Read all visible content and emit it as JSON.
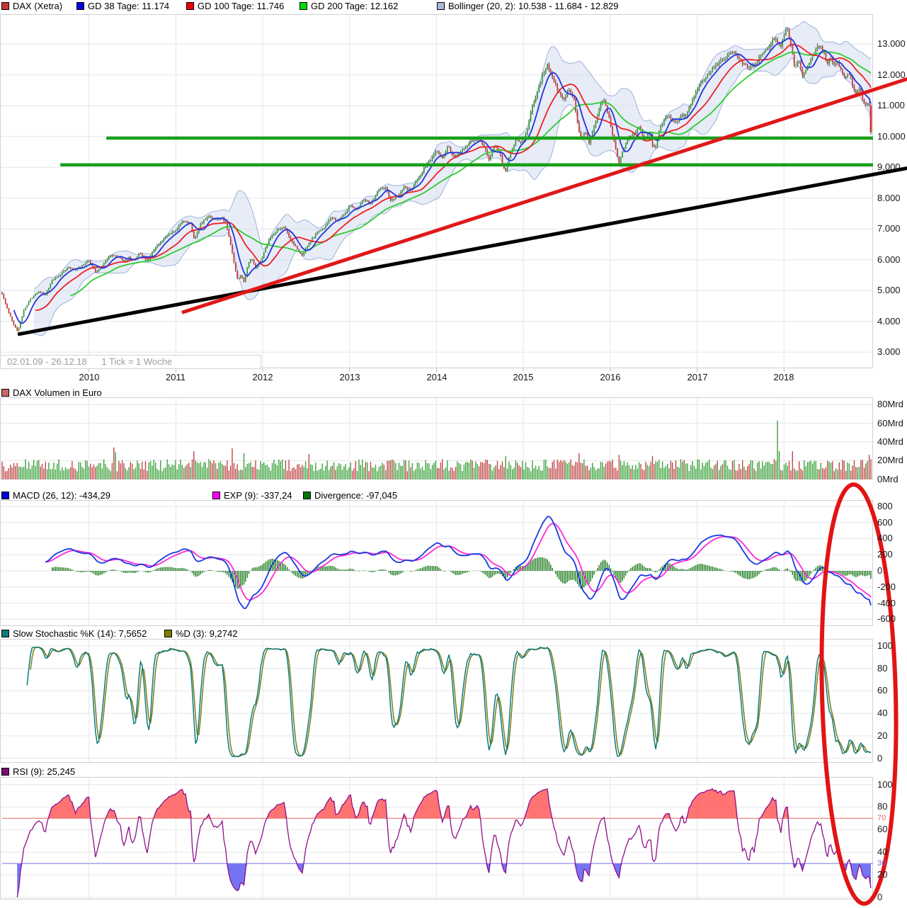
{
  "window": {
    "background": "#ffffff"
  },
  "annotation": {
    "shape": "ellipse",
    "color": "#e21414"
  },
  "chart_data": [
    {
      "id": "price",
      "type": "candlestick",
      "title": "DAX (Xetra)",
      "date_range": "02.01.09 - 26.12.18",
      "timeframe": "1 Tick = 1 Woche",
      "legend": [
        {
          "label": "DAX (Xetra)",
          "color": "#cc3333"
        },
        {
          "label": "GD 38 Tage: 11.174",
          "color": "#0000dd"
        },
        {
          "label": "GD 100 Tage: 11.746",
          "color": "#ee0000"
        },
        {
          "label": "GD 200 Tage: 12.162",
          "color": "#00dd00"
        },
        {
          "label": "Bollinger (20, 2): 10.538 - 11.684 - 12.829",
          "color": "#aab8dc"
        }
      ],
      "x_labels": [
        "2010",
        "2011",
        "2012",
        "2013",
        "2014",
        "2015",
        "2016",
        "2017",
        "2018"
      ],
      "y_ticks": [
        {
          "v": 13000,
          "label": "13.000"
        },
        {
          "v": 12000,
          "label": "12.000"
        },
        {
          "v": 11000,
          "label": "11.000"
        },
        {
          "v": 10000,
          "label": "10.000"
        },
        {
          "v": 9000,
          "label": "9.000"
        },
        {
          "v": 8000,
          "label": "8.000"
        },
        {
          "v": 7000,
          "label": "7.000"
        },
        {
          "v": 6000,
          "label": "6.000"
        },
        {
          "v": 5000,
          "label": "5.000"
        },
        {
          "v": 4000,
          "label": "4.000"
        },
        {
          "v": 3000,
          "label": "3.000"
        }
      ],
      "ylim": [
        2480,
        13980
      ],
      "indicators": {
        "gd38": "11.174",
        "gd100": "11.746",
        "gd200": "12.162",
        "bollinger_20_2": "10.538 - 11.684 - 12.829"
      },
      "support_levels": [
        {
          "price": 9950,
          "start_year": 2010.2,
          "color": "#18a018"
        },
        {
          "price": 9080,
          "start_year": 2009.67,
          "color": "#18a018"
        }
      ],
      "trendlines": [
        {
          "color": "#000000",
          "x1_year": 2009.18,
          "price1": 3580,
          "x2_year": 2019.45,
          "price2": 8990
        },
        {
          "color": "#e01818",
          "x1_year": 2011.07,
          "price1": 4290,
          "x2_year": 2019.45,
          "price2": 11900
        }
      ],
      "weekly_close_anchors": [
        [
          2009.0,
          4900
        ],
        [
          2009.05,
          4450
        ],
        [
          2009.13,
          3900
        ],
        [
          2009.18,
          3680
        ],
        [
          2009.25,
          4350
        ],
        [
          2009.33,
          4720
        ],
        [
          2009.42,
          4950
        ],
        [
          2009.5,
          4850
        ],
        [
          2009.58,
          5350
        ],
        [
          2009.67,
          5480
        ],
        [
          2009.75,
          5750
        ],
        [
          2009.83,
          5650
        ],
        [
          2009.92,
          5800
        ],
        [
          2010.0,
          5950
        ],
        [
          2010.08,
          5580
        ],
        [
          2010.17,
          5900
        ],
        [
          2010.25,
          6150
        ],
        [
          2010.33,
          6100
        ],
        [
          2010.4,
          5950
        ],
        [
          2010.46,
          6050
        ],
        [
          2010.52,
          5980
        ],
        [
          2010.58,
          6250
        ],
        [
          2010.67,
          5980
        ],
        [
          2010.75,
          6300
        ],
        [
          2010.83,
          6600
        ],
        [
          2010.92,
          6850
        ],
        [
          2011.0,
          6950
        ],
        [
          2011.08,
          7250
        ],
        [
          2011.17,
          7150
        ],
        [
          2011.21,
          6680
        ],
        [
          2011.29,
          7180
        ],
        [
          2011.37,
          7420
        ],
        [
          2011.45,
          7280
        ],
        [
          2011.54,
          7350
        ],
        [
          2011.58,
          7150
        ],
        [
          2011.63,
          6450
        ],
        [
          2011.67,
          5850
        ],
        [
          2011.71,
          5380
        ],
        [
          2011.75,
          5520
        ],
        [
          2011.79,
          5270
        ],
        [
          2011.83,
          5870
        ],
        [
          2011.87,
          6080
        ],
        [
          2011.92,
          5720
        ],
        [
          2011.96,
          5900
        ],
        [
          2012.0,
          6120
        ],
        [
          2012.08,
          6720
        ],
        [
          2012.17,
          6960
        ],
        [
          2012.25,
          7060
        ],
        [
          2012.33,
          6620
        ],
        [
          2012.42,
          6280
        ],
        [
          2012.46,
          6120
        ],
        [
          2012.54,
          6570
        ],
        [
          2012.63,
          6920
        ],
        [
          2012.71,
          7020
        ],
        [
          2012.79,
          7370
        ],
        [
          2012.87,
          7260
        ],
        [
          2012.96,
          7560
        ],
        [
          2013.0,
          7760
        ],
        [
          2013.08,
          7660
        ],
        [
          2013.17,
          7960
        ],
        [
          2013.25,
          7810
        ],
        [
          2013.33,
          8260
        ],
        [
          2013.42,
          8360
        ],
        [
          2013.47,
          7920
        ],
        [
          2013.54,
          8060
        ],
        [
          2013.63,
          8360
        ],
        [
          2013.71,
          8260
        ],
        [
          2013.79,
          8660
        ],
        [
          2013.87,
          9050
        ],
        [
          2013.96,
          9400
        ],
        [
          2014.0,
          9550
        ],
        [
          2014.06,
          9260
        ],
        [
          2014.13,
          9650
        ],
        [
          2014.21,
          9360
        ],
        [
          2014.29,
          9600
        ],
        [
          2014.38,
          9800
        ],
        [
          2014.46,
          9950
        ],
        [
          2014.54,
          9700
        ],
        [
          2014.6,
          9260
        ],
        [
          2014.67,
          9650
        ],
        [
          2014.73,
          9460
        ],
        [
          2014.79,
          8820
        ],
        [
          2014.85,
          9500
        ],
        [
          2014.92,
          9900
        ],
        [
          2015.0,
          9810
        ],
        [
          2015.05,
          10300
        ],
        [
          2015.1,
          10950
        ],
        [
          2015.17,
          11600
        ],
        [
          2015.23,
          12050
        ],
        [
          2015.28,
          12300
        ],
        [
          2015.33,
          11900
        ],
        [
          2015.4,
          11520
        ],
        [
          2015.46,
          11120
        ],
        [
          2015.52,
          11560
        ],
        [
          2015.58,
          11260
        ],
        [
          2015.63,
          10260
        ],
        [
          2015.67,
          9960
        ],
        [
          2015.71,
          10160
        ],
        [
          2015.75,
          9720
        ],
        [
          2015.81,
          10360
        ],
        [
          2015.87,
          10920
        ],
        [
          2015.92,
          11200
        ],
        [
          2015.96,
          10860
        ],
        [
          2016.0,
          10460
        ],
        [
          2016.05,
          9760
        ],
        [
          2016.1,
          9070
        ],
        [
          2016.15,
          9560
        ],
        [
          2016.21,
          9960
        ],
        [
          2016.27,
          10060
        ],
        [
          2016.33,
          10260
        ],
        [
          2016.4,
          9870
        ],
        [
          2016.46,
          10160
        ],
        [
          2016.49,
          9620
        ],
        [
          2016.53,
          9770
        ],
        [
          2016.57,
          10270
        ],
        [
          2016.63,
          10570
        ],
        [
          2016.69,
          10620
        ],
        [
          2016.75,
          10470
        ],
        [
          2016.81,
          10670
        ],
        [
          2016.87,
          10720
        ],
        [
          2016.94,
          11160
        ],
        [
          2017.0,
          11560
        ],
        [
          2017.08,
          11760
        ],
        [
          2017.15,
          12060
        ],
        [
          2017.23,
          12360
        ],
        [
          2017.31,
          12560
        ],
        [
          2017.38,
          12720
        ],
        [
          2017.46,
          12660
        ],
        [
          2017.52,
          12360
        ],
        [
          2017.6,
          12160
        ],
        [
          2017.67,
          12310
        ],
        [
          2017.73,
          12660
        ],
        [
          2017.81,
          12960
        ],
        [
          2017.87,
          13160
        ],
        [
          2017.92,
          13060
        ],
        [
          2017.96,
          12960
        ],
        [
          2018.0,
          13260
        ],
        [
          2018.04,
          13480
        ],
        [
          2018.08,
          12860
        ],
        [
          2018.12,
          12260
        ],
        [
          2018.17,
          12420
        ],
        [
          2018.21,
          11960
        ],
        [
          2018.25,
          12110
        ],
        [
          2018.31,
          12460
        ],
        [
          2018.37,
          12910
        ],
        [
          2018.42,
          12960
        ],
        [
          2018.46,
          12660
        ],
        [
          2018.5,
          12360
        ],
        [
          2018.54,
          12560
        ],
        [
          2018.58,
          12360
        ],
        [
          2018.62,
          12420
        ],
        [
          2018.67,
          12160
        ],
        [
          2018.71,
          11960
        ],
        [
          2018.75,
          12110
        ],
        [
          2018.79,
          11660
        ],
        [
          2018.83,
          11460
        ],
        [
          2018.87,
          11560
        ],
        [
          2018.9,
          11260
        ],
        [
          2018.94,
          11100
        ],
        [
          2018.98,
          11000
        ],
        [
          2019.0,
          10150
        ]
      ]
    },
    {
      "id": "volume",
      "type": "bar",
      "legend": [
        {
          "label": "DAX Volumen in Euro",
          "color": "#cc6666"
        }
      ],
      "unit": "Mrd",
      "y_ticks": [
        {
          "v": 80,
          "label": "80Mrd"
        },
        {
          "v": 60,
          "label": "60Mrd"
        },
        {
          "v": 40,
          "label": "40Mrd"
        },
        {
          "v": 20,
          "label": "20Mrd"
        },
        {
          "v": 0,
          "label": "0Mrd"
        }
      ],
      "spikes": [
        [
          2010.28,
          34,
          "red"
        ],
        [
          2010.31,
          29,
          "green"
        ],
        [
          2011.21,
          30,
          "red"
        ],
        [
          2011.65,
          33,
          "red"
        ],
        [
          2011.79,
          28,
          "green"
        ],
        [
          2012.54,
          27,
          "red"
        ],
        [
          2014.79,
          25,
          "green"
        ],
        [
          2015.65,
          28,
          "red"
        ],
        [
          2016.1,
          26,
          "red"
        ],
        [
          2016.49,
          25,
          "red"
        ],
        [
          2017.92,
          63,
          "green"
        ],
        [
          2017.94,
          30,
          "green"
        ],
        [
          2018.1,
          30,
          "red"
        ],
        [
          2018.98,
          26,
          "red"
        ]
      ]
    },
    {
      "id": "macd",
      "type": "line",
      "legend": [
        {
          "label": "MACD (26, 12): -434,29",
          "color": "#0000dd"
        },
        {
          "label": "EXP (9): -337,24",
          "color": "#ff00ff"
        },
        {
          "label": "Divergence: -97,045",
          "color": "#007700"
        }
      ],
      "params": {
        "slow": 26,
        "fast": 12,
        "signal": 9
      },
      "current": {
        "macd": "-434,29",
        "exp": "-337,24",
        "divergence": "-97,045"
      },
      "y_ticks": [
        {
          "v": 800,
          "label": "800"
        },
        {
          "v": 600,
          "label": "600"
        },
        {
          "v": 400,
          "label": "400"
        },
        {
          "v": 200,
          "label": "200"
        },
        {
          "v": 0,
          "label": "0"
        },
        {
          "v": -200,
          "label": "-200"
        },
        {
          "v": -400,
          "label": "-400"
        },
        {
          "v": -600,
          "label": "-600"
        }
      ]
    },
    {
      "id": "stochastic",
      "type": "line",
      "legend": [
        {
          "label": "Slow Stochastic %K (14): 7,5652",
          "color": "#0d7b7b"
        },
        {
          "label": "%D (3): 9,2742",
          "color": "#7d7d00"
        }
      ],
      "params": {
        "k": 14,
        "d": 3
      },
      "current": {
        "percent_k": "7,5652",
        "percent_d": "9,2742"
      },
      "y_ticks": [
        {
          "v": 100,
          "label": "100"
        },
        {
          "v": 80,
          "label": "80"
        },
        {
          "v": 60,
          "label": "60"
        },
        {
          "v": 40,
          "label": "40"
        },
        {
          "v": 20,
          "label": "20"
        },
        {
          "v": 0,
          "label": "0"
        }
      ]
    },
    {
      "id": "rsi",
      "type": "line",
      "legend": [
        {
          "label": "RSI (9): 25,245",
          "color": "#7a0d7a"
        }
      ],
      "params": {
        "period": 9
      },
      "current": {
        "rsi": "25,245"
      },
      "y_ticks": [
        {
          "v": 100,
          "label": "100"
        },
        {
          "v": 80,
          "label": "80"
        },
        {
          "v": 60,
          "label": "60"
        },
        {
          "v": 40,
          "label": "40"
        },
        {
          "v": 20,
          "label": "20"
        },
        {
          "v": 0,
          "label": "0"
        }
      ],
      "threshold_ticks": [
        {
          "v": 70,
          "label": "70",
          "color": "#e06868"
        },
        {
          "v": 30,
          "label": "30",
          "color": "#7070e0"
        }
      ]
    }
  ]
}
